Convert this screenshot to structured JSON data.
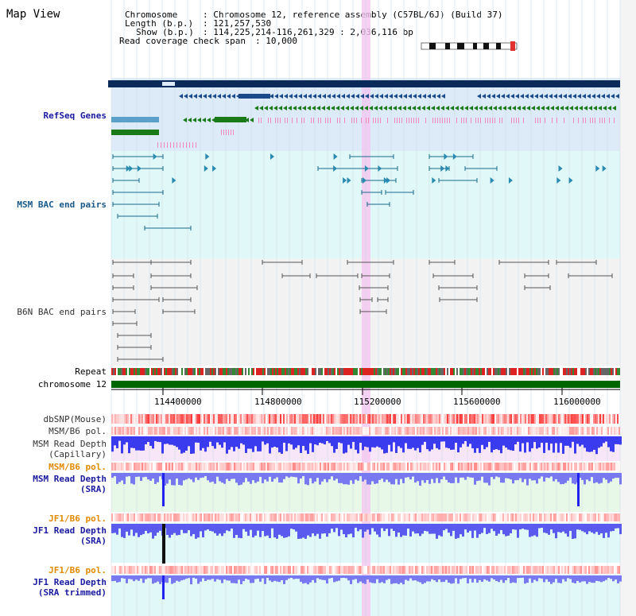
{
  "page_title": "Map View",
  "info": {
    "chromosome_key": "Chromosome",
    "chromosome_value": ": Chromosome 12, reference assembly (C57BL/6J) (Build 37)",
    "length_key": "Length (b.p.)",
    "length_value": ": 121,257,530",
    "show_key": "Show (b.p.)",
    "show_value": ": 114,225,214-116,261,329 : 2,036,116 bp",
    "coverage_key": "Read coverage check span",
    "coverage_value": ": 10,000"
  },
  "tracks": {
    "refseq": "RefSeq Genes",
    "msm_bac": "MSM BAC end pairs",
    "b6n_bac": "B6N BAC end pairs",
    "repeat": "Repeat",
    "chromosome": "chromosome 12",
    "dbsnp": "dbSNP(Mouse)",
    "msm_b6_pol_1": "MSM/B6 pol.",
    "msm_read_depth_cap_1": "MSM Read Depth",
    "msm_read_depth_cap_2": "(Capillary)",
    "msm_b6_pol_2": "MSM/B6 pol.",
    "msm_read_depth_sra_1": "MSM Read Depth",
    "msm_read_depth_sra_2": "(SRA)",
    "jf1_b6_pol_1": "JF1/B6 pol.",
    "jf1_read_depth_sra_1": "JF1 Read Depth",
    "jf1_read_depth_sra_2": "(SRA)",
    "jf1_b6_pol_2": "JF1/B6 pol.",
    "jf1_read_depth_trim_1": "JF1 Read Depth",
    "jf1_read_depth_trim_2": "(SRA trimmed)"
  },
  "axis_ticks": [
    "114400000",
    "114800000",
    "115200000",
    "115600000",
    "116000000"
  ],
  "colors": {
    "refseq_bg": "#dcebf7",
    "bac_bg": "#e0f8f8",
    "b6n_bg": "#f2f2f2",
    "highlight": "#f5c6f0",
    "chromosome_bar": "#006600",
    "depth_blue": "#2222ee",
    "gene_dark": "#0a2a5a",
    "gene_green": "#1a7a1a"
  }
}
